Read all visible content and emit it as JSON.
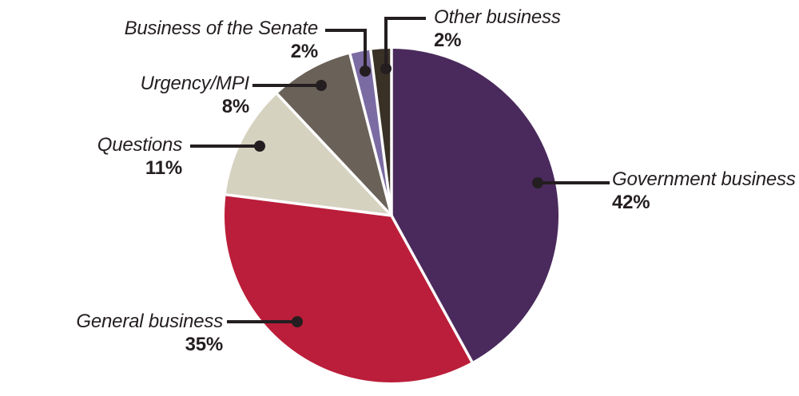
{
  "chart_data": {
    "type": "pie",
    "title": "",
    "direction": "clockwise",
    "start_angle_deg": 0,
    "background": "#ffffff",
    "separator_color": "#ffffff",
    "callout_color": "#241e20",
    "text_color": "#241e20",
    "slices": [
      {
        "label": "Government business",
        "pct_label": "42%",
        "value": 42,
        "color": "#4a2a5c"
      },
      {
        "label": "General business",
        "pct_label": "35%",
        "value": 35,
        "color": "#bb1e3a"
      },
      {
        "label": "Questions",
        "pct_label": "11%",
        "value": 11,
        "color": "#d5d2c0"
      },
      {
        "label": "Urgency/MPI",
        "pct_label": "8%",
        "value": 8,
        "color": "#6a6158"
      },
      {
        "label": "Business of the Senate",
        "pct_label": "2%",
        "value": 2,
        "color": "#7b6ba3"
      },
      {
        "label": "Other business",
        "pct_label": "2%",
        "value": 2,
        "color": "#3a3126"
      }
    ]
  }
}
